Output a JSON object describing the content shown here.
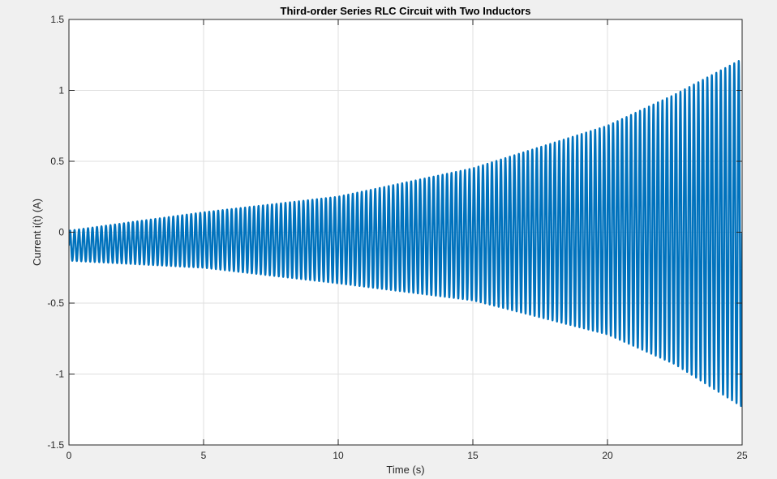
{
  "chart_data": {
    "type": "line",
    "title": "Third-order Series RLC Circuit with Two Inductors",
    "xlabel": "Time (s)",
    "ylabel": "Current i(t) (A)",
    "xlim": [
      0,
      25
    ],
    "ylim": [
      -1.5,
      1.5
    ],
    "xticks": [
      0,
      5,
      10,
      15,
      20,
      25
    ],
    "xtick_labels": [
      "0",
      "5",
      "10",
      "15",
      "20",
      "25"
    ],
    "yticks": [
      -1.5,
      -1,
      -0.5,
      0,
      0.5,
      1,
      1.5
    ],
    "ytick_labels": [
      "-1.5",
      "-1",
      "-0.5",
      "0",
      "0.5",
      "1",
      "1.5"
    ],
    "grid": true,
    "legend": "none",
    "series": [
      {
        "color": "#0072bd",
        "description_of_signal": "growing oscillation about a small negative offset",
        "oscillation_cycles_over_range": 150,
        "envelope_upper": {
          "x": [
            0,
            5,
            10,
            15,
            20,
            22.5,
            25
          ],
          "y": [
            0.01,
            0.14,
            0.25,
            0.45,
            0.75,
            0.97,
            1.22
          ]
        },
        "envelope_lower": {
          "x": [
            0,
            5,
            10,
            15,
            20,
            22.5,
            25
          ],
          "y": [
            -0.2,
            -0.25,
            -0.36,
            -0.48,
            -0.72,
            -0.93,
            -1.23
          ]
        }
      }
    ]
  },
  "colors": {
    "figure_background": "#f0f0f0",
    "axes_background": "#ffffff",
    "grid": "#dfdfdf",
    "line": "#0072bd"
  }
}
